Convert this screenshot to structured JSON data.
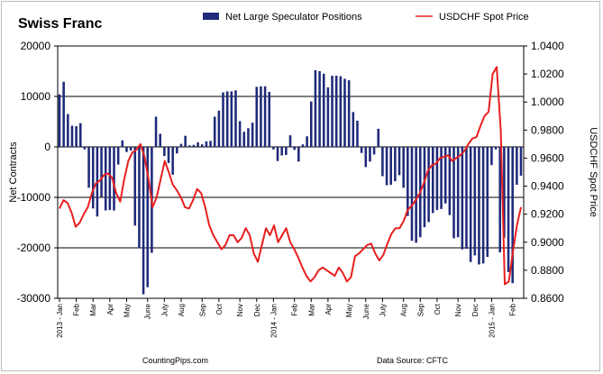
{
  "chart_data": {
    "type": "bar+line",
    "title": "Swiss Franc",
    "ylabel_left": "Net Contracts",
    "ylabel_right": "USDCHF Spot Price",
    "ylim_left": [
      -30000,
      20000
    ],
    "ylim_right": [
      0.86,
      1.04
    ],
    "yticks_left": [
      -30000,
      -20000,
      -10000,
      0,
      10000,
      20000
    ],
    "yticks_left_labels": [
      "-30000",
      "-20000",
      "-10000",
      "0",
      "10000",
      "20000"
    ],
    "yticks_right": [
      0.86,
      0.88,
      0.9,
      0.92,
      0.94,
      0.96,
      0.98,
      1.0,
      1.02,
      1.04
    ],
    "yticks_right_labels": [
      "0.8600",
      "0.8800",
      "0.9000",
      "0.9200",
      "0.9400",
      "0.9600",
      "0.9800",
      "1.0000",
      "1.0200",
      "1.0400"
    ],
    "gridlines_left": [
      -20000,
      -10000,
      0,
      10000
    ],
    "x_tick_labels": [
      "2013 - Jan",
      "Feb",
      "Mar",
      "Apr",
      "May",
      "June",
      "July",
      "Aug",
      "Sep",
      "Oct",
      "Nov",
      "Dec",
      "2014 - Jan",
      "Feb",
      "Mar",
      "Apr",
      "May",
      "June",
      "July",
      "Aug",
      "Sep",
      "Oct",
      "Nov",
      "Dec",
      "2015 - Jan",
      "Feb"
    ],
    "week_index_of_month_start": [
      0,
      4,
      8,
      12,
      16,
      21,
      25,
      29,
      34,
      38,
      43,
      47,
      51,
      56,
      60,
      64,
      69,
      73,
      77,
      82,
      86,
      90,
      95,
      99,
      103,
      108
    ],
    "weeks": 111,
    "series": [
      {
        "name": "Net Large Speculator Positions",
        "kind": "bar",
        "color": "#1f2a7a",
        "values": [
          10400,
          12900,
          6500,
          4200,
          4100,
          4700,
          -500,
          -8100,
          -12200,
          -13800,
          -9900,
          -12600,
          -12500,
          -12600,
          -3500,
          1300,
          -1000,
          -700,
          -15600,
          -20100,
          -29200,
          -27800,
          -21000,
          6000,
          2600,
          -1800,
          -3200,
          -5500,
          -1300,
          600,
          2200,
          300,
          400,
          900,
          500,
          1100,
          1200,
          6000,
          7200,
          10800,
          11000,
          11000,
          11200,
          5100,
          3000,
          3700,
          4800,
          11900,
          12000,
          12000,
          10900,
          -500,
          -2800,
          -1700,
          -1600,
          2300,
          -600,
          -2900,
          500,
          2100,
          9000,
          15200,
          15000,
          14500,
          11800,
          14100,
          14100,
          14000,
          13500,
          13200,
          6900,
          5200,
          -1200,
          -4000,
          -2900,
          -1500,
          3600,
          -5800,
          -7600,
          -7500,
          -6800,
          -5600,
          -8100,
          -13700,
          -18600,
          -19000,
          -17900,
          -15900,
          -14900,
          -13100,
          -12500,
          -12300,
          -11200,
          -13500,
          -18100,
          -17900,
          -20300,
          -20200,
          -22800,
          -21500,
          -23300,
          -23100,
          -21800,
          -3600,
          -500,
          -20900,
          -18000,
          -24800,
          -27000,
          -7500,
          -5700
        ],
        "legend_label": "Net Large Speculator Positions"
      },
      {
        "name": "USDCHF Spot Price",
        "kind": "line",
        "color": "#e81f1f",
        "points": [
          [
            0,
            0.924
          ],
          [
            1,
            0.93
          ],
          [
            2,
            0.928
          ],
          [
            3,
            0.921
          ],
          [
            4,
            0.911
          ],
          [
            5,
            0.914
          ],
          [
            6,
            0.92
          ],
          [
            7,
            0.925
          ],
          [
            8,
            0.935
          ],
          [
            9,
            0.942
          ],
          [
            10,
            0.944
          ],
          [
            11,
            0.948
          ],
          [
            12,
            0.949
          ],
          [
            13,
            0.946
          ],
          [
            14,
            0.935
          ],
          [
            15,
            0.929
          ],
          [
            16,
            0.945
          ],
          [
            17,
            0.958
          ],
          [
            18,
            0.964
          ],
          [
            19,
            0.966
          ],
          [
            20,
            0.97
          ],
          [
            21,
            0.961
          ],
          [
            22,
            0.945
          ],
          [
            23,
            0.925
          ],
          [
            24,
            0.932
          ],
          [
            25,
            0.945
          ],
          [
            26,
            0.958
          ],
          [
            27,
            0.95
          ],
          [
            28,
            0.941
          ],
          [
            29,
            0.937
          ],
          [
            30,
            0.932
          ],
          [
            31,
            0.925
          ],
          [
            32,
            0.924
          ],
          [
            33,
            0.93
          ],
          [
            34,
            0.938
          ],
          [
            35,
            0.935
          ],
          [
            36,
            0.925
          ],
          [
            37,
            0.912
          ],
          [
            38,
            0.905
          ],
          [
            39,
            0.9
          ],
          [
            40,
            0.895
          ],
          [
            41,
            0.898
          ],
          [
            42,
            0.905
          ],
          [
            43,
            0.905
          ],
          [
            44,
            0.9
          ],
          [
            45,
            0.903
          ],
          [
            46,
            0.91
          ],
          [
            47,
            0.905
          ],
          [
            48,
            0.892
          ],
          [
            49,
            0.886
          ],
          [
            50,
            0.898
          ],
          [
            51,
            0.91
          ],
          [
            52,
            0.905
          ],
          [
            53,
            0.912
          ],
          [
            54,
            0.9
          ],
          [
            55,
            0.905
          ],
          [
            56,
            0.91
          ],
          [
            57,
            0.9
          ],
          [
            58,
            0.895
          ],
          [
            59,
            0.889
          ],
          [
            60,
            0.882
          ],
          [
            61,
            0.876
          ],
          [
            62,
            0.872
          ],
          [
            63,
            0.875
          ],
          [
            64,
            0.88
          ],
          [
            65,
            0.882
          ],
          [
            66,
            0.88
          ],
          [
            67,
            0.878
          ],
          [
            68,
            0.876
          ],
          [
            69,
            0.882
          ],
          [
            70,
            0.878
          ],
          [
            71,
            0.872
          ],
          [
            72,
            0.875
          ],
          [
            73,
            0.89
          ],
          [
            74,
            0.892
          ],
          [
            75,
            0.895
          ],
          [
            76,
            0.898
          ],
          [
            77,
            0.899
          ],
          [
            78,
            0.892
          ],
          [
            79,
            0.887
          ],
          [
            80,
            0.891
          ],
          [
            81,
            0.899
          ],
          [
            82,
            0.906
          ],
          [
            83,
            0.91
          ],
          [
            84,
            0.91
          ],
          [
            85,
            0.915
          ],
          [
            86,
            0.923
          ],
          [
            87,
            0.926
          ],
          [
            88,
            0.93
          ],
          [
            89,
            0.935
          ],
          [
            90,
            0.942
          ],
          [
            91,
            0.951
          ],
          [
            92,
            0.955
          ],
          [
            93,
            0.956
          ],
          [
            94,
            0.96
          ],
          [
            95,
            0.961
          ],
          [
            96,
            0.962
          ],
          [
            97,
            0.958
          ],
          [
            98,
            0.96
          ],
          [
            99,
            0.962
          ],
          [
            100,
            0.965
          ],
          [
            101,
            0.97
          ],
          [
            102,
            0.974
          ],
          [
            103,
            0.975
          ],
          [
            104,
            0.983
          ],
          [
            105,
            0.99
          ],
          [
            106,
            0.993
          ],
          [
            107,
            1.02
          ],
          [
            108,
            1.025
          ],
          [
            109,
            0.98
          ],
          [
            110,
            0.87
          ],
          [
            111,
            0.872
          ],
          [
            112,
            0.893
          ],
          [
            113,
            0.912
          ],
          [
            114,
            0.925
          ]
        ],
        "legend_label": "USDCHF Spot Price"
      }
    ]
  },
  "footer": {
    "left": "CountingPips.com",
    "right": "Data Source: CFTC"
  }
}
